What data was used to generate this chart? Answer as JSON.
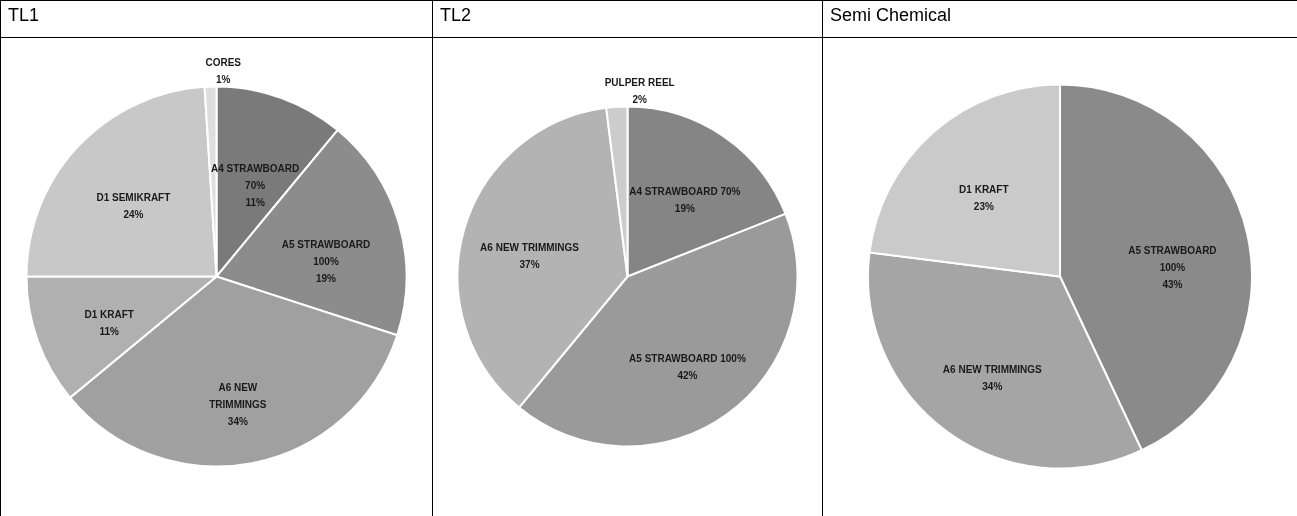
{
  "chart_data": [
    {
      "type": "pie",
      "title": "TL1",
      "categories": [
        "A4 STRAWBOARD 70%",
        "A5 STRAWBOARD 100%",
        "A6 NEW TRIMMINGS",
        "D1 KRAFT",
        "D1 SEMIKRAFT",
        "CORES"
      ],
      "values": [
        11,
        19,
        34,
        11,
        24,
        1
      ],
      "value_labels": [
        "11%",
        "19%",
        "34%",
        "11%",
        "24%",
        "1%"
      ],
      "colors": [
        "#7a7a7a",
        "#8c8c8c",
        "#a0a0a0",
        "#b0b0b0",
        "#c8c8c8",
        "#dedede"
      ]
    },
    {
      "type": "pie",
      "title": "TL2",
      "categories": [
        "A4 STRAWBOARD 70%",
        "A5 STRAWBOARD 100%",
        "A6 NEW TRIMMINGS",
        "PULPER REEL"
      ],
      "values": [
        19,
        42,
        37,
        2
      ],
      "value_labels": [
        "19%",
        "42%",
        "37%",
        "2%"
      ],
      "colors": [
        "#858585",
        "#9a9a9a",
        "#b3b3b3",
        "#cccccc"
      ]
    },
    {
      "type": "pie",
      "title": "Semi Chemical",
      "categories": [
        "A5 STRAWBOARD 100%",
        "A6 NEW TRIMMINGS",
        "D1 KRAFT"
      ],
      "values": [
        43,
        34,
        23
      ],
      "value_labels": [
        "43%",
        "34%",
        "23%"
      ],
      "colors": [
        "#8a8a8a",
        "#a5a5a5",
        "#cacaca"
      ]
    }
  ]
}
